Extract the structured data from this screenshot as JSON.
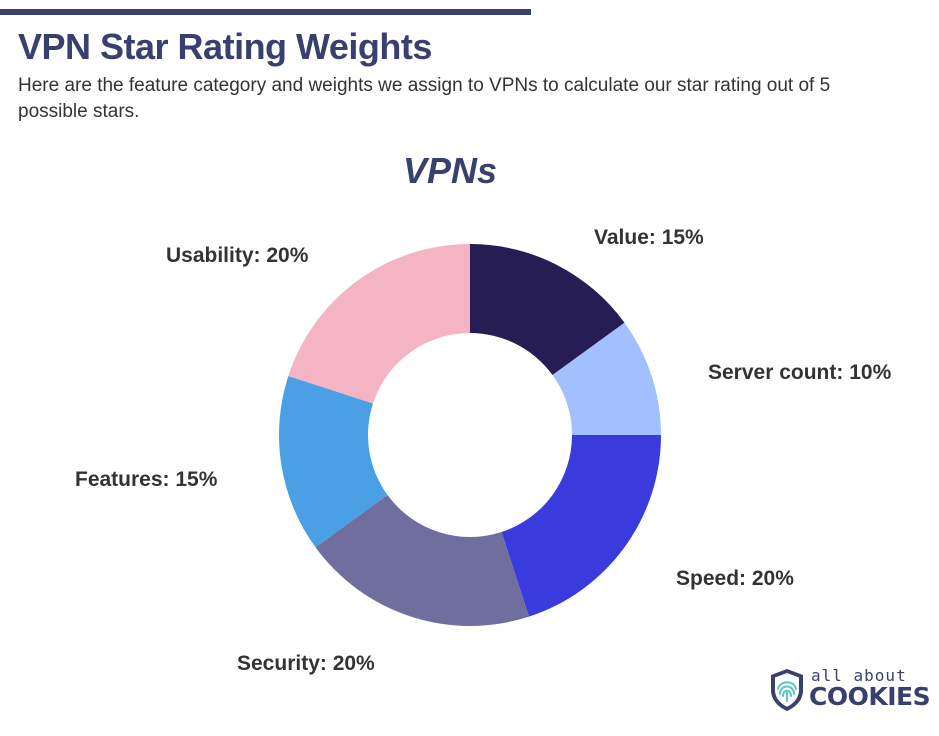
{
  "header": {
    "title": "VPN Star Rating Weights",
    "subtitle": "Here are the feature category and weights we assign to VPNs to calculate our star rating out of 5 possible stars."
  },
  "chart_data": {
    "type": "pie",
    "donut": true,
    "title": "VPNs",
    "unit": "%",
    "slices": [
      {
        "label": "Value",
        "value": 15,
        "color": "#261d54"
      },
      {
        "label": "Server count",
        "value": 10,
        "color": "#a3c0fe"
      },
      {
        "label": "Speed",
        "value": 20,
        "color": "#3a3bdd"
      },
      {
        "label": "Security",
        "value": 20,
        "color": "#6f6e9f"
      },
      {
        "label": "Features",
        "value": 15,
        "color": "#4b9fe5"
      },
      {
        "label": "Usability",
        "value": 20,
        "color": "#f4b4c4"
      }
    ]
  },
  "brand": {
    "line1": "all about",
    "line2": "COOKIES",
    "icon": "fingerprint-shield-icon",
    "color": "#38406e"
  },
  "colors": {
    "accent": "#38406e",
    "text": "#333333"
  }
}
